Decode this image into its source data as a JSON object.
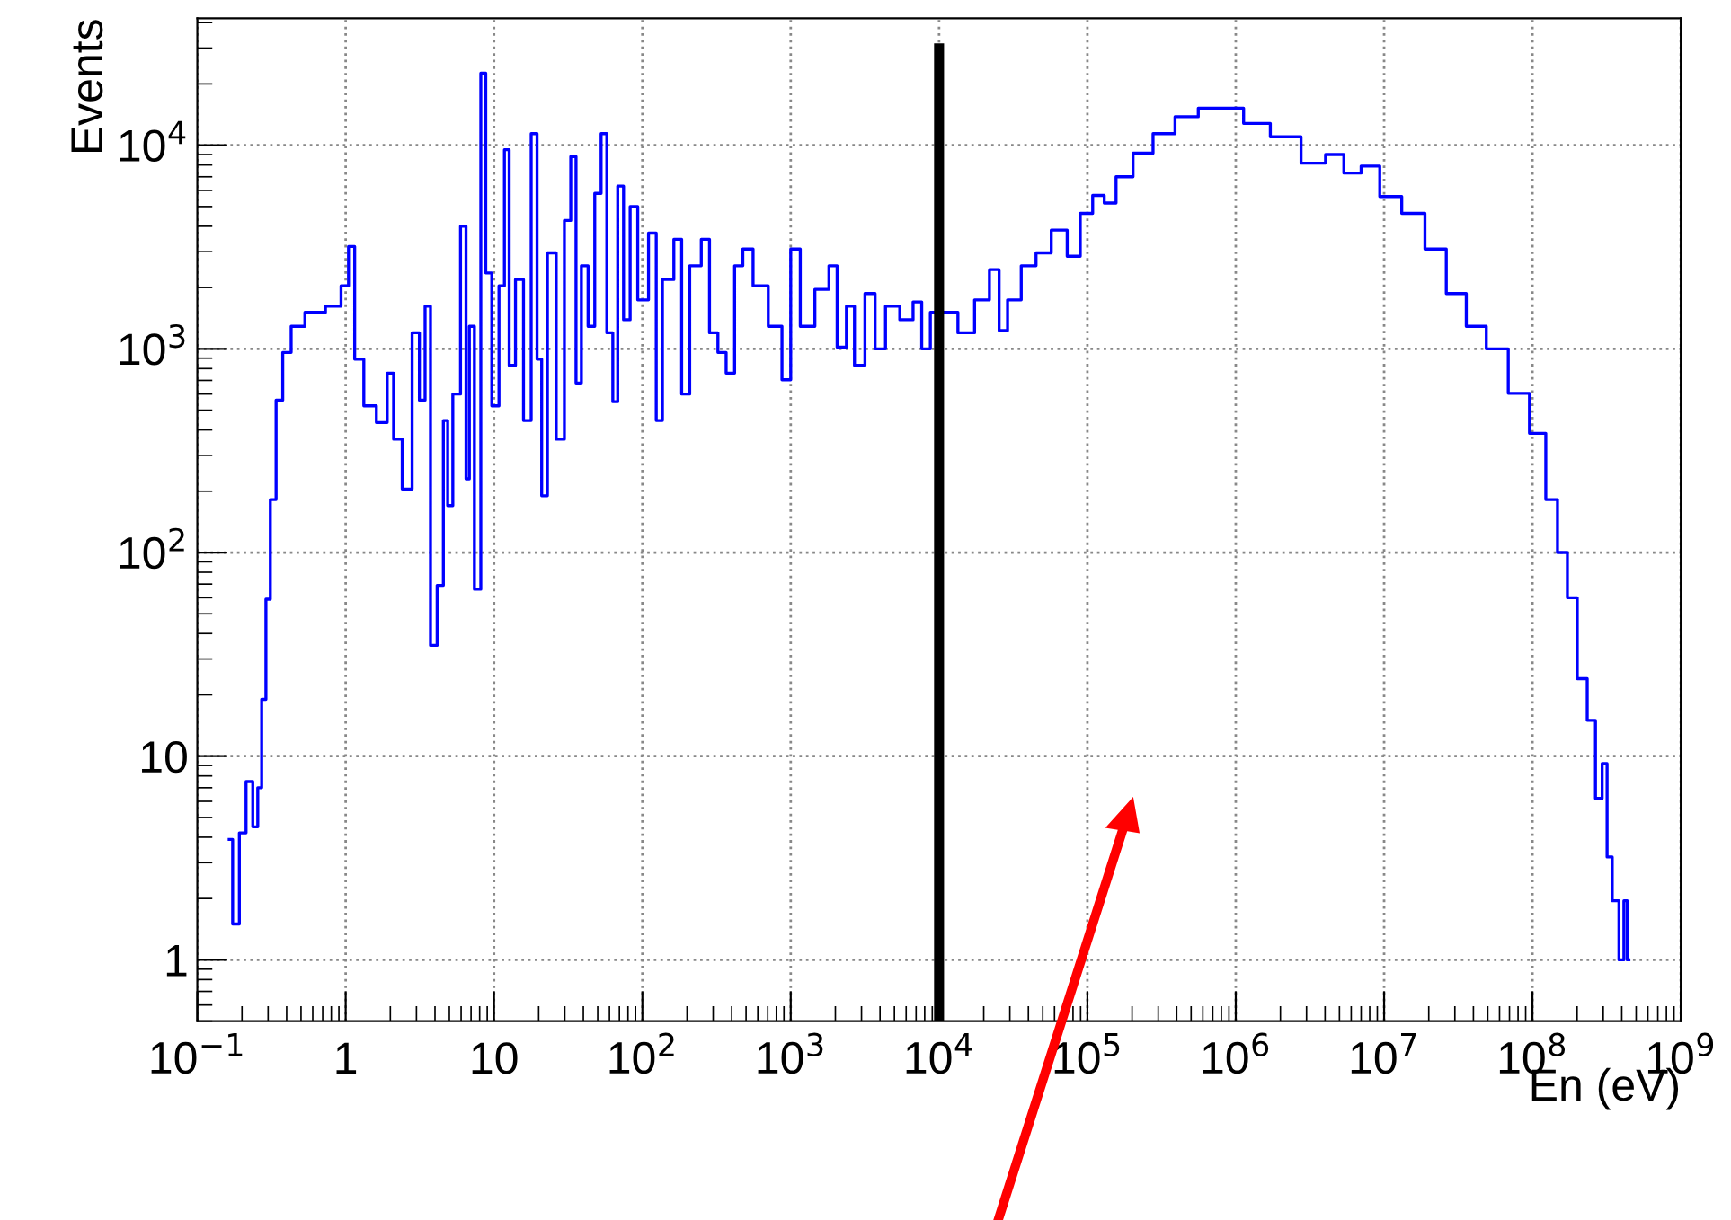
{
  "chart_data": {
    "type": "step",
    "xlabel": "En (eV)",
    "ylabel": "Events",
    "log": "xy",
    "grid": true,
    "xlim": [
      0.1,
      1000000000
    ],
    "ylim": [
      0.5,
      42000
    ],
    "xticks": [
      {
        "value": 0.1,
        "label": "10$^{−1}$"
      },
      1,
      10,
      {
        "value": 100,
        "label": "10$^{2}$"
      },
      {
        "value": 1000,
        "label": "10$^{3}$"
      },
      {
        "value": 10000,
        "label": "10$^{4}$"
      },
      {
        "value": 100000,
        "label": "10$^{5}$"
      },
      {
        "value": 1000000,
        "label": "10$^{6}$"
      },
      {
        "value": 10000000,
        "label": "10$^{7}$"
      },
      {
        "value": 100000000,
        "label": "10$^{8}$"
      },
      {
        "value": 1000000000,
        "label": "10$^{9}$"
      }
    ],
    "yticks": [
      1,
      10,
      {
        "value": 100,
        "label": "10$^{2}$"
      },
      {
        "value": 1000,
        "label": "10$^{3}$"
      },
      {
        "value": 10000,
        "label": "10$^{4}$"
      }
    ],
    "ref_lines": [
      {
        "axis": "x",
        "value": 10000,
        "color": "#000000"
      }
    ],
    "series": [
      {
        "color": "#0000ff",
        "x": [
          0.164,
          0.182,
          0.202,
          0.224,
          0.249,
          0.262,
          0.281,
          0.299,
          0.322,
          0.357,
          0.396,
          0.462,
          0.6,
          0.861,
          1.0,
          1.09,
          1.21,
          1.44,
          1.78,
          2.03,
          2.18,
          2.63,
          2.98,
          3.3,
          3.56,
          3.9,
          4.37,
          4.74,
          5.0,
          5.55,
          6.34,
          6.61,
          7.03,
          7.72,
          8.57,
          9.02,
          10.3,
          11.3,
          12.2,
          13.1,
          14.8,
          16.8,
          18.8,
          20.2,
          21.7,
          24.1,
          28.4,
          31.2,
          34.6,
          36.8,
          40.8,
          45.3,
          50.2,
          55.2,
          60.0,
          66.4,
          70.0,
          79.3,
          86.1,
          100,
          120,
          128,
          145,
          181,
          187,
          230,
          269,
          298,
          348,
          386,
          451,
          500,
          615,
          796,
          950,
          1050,
          1270,
          1640,
          1980,
          2130,
          2620,
          2760,
          3570,
          3840,
          4870,
          6000,
          7360,
          7920,
          9550,
          11700,
          15100,
          19600,
          24100,
          26700,
          31200,
          40400,
          49700,
          64400,
          81700,
          97300,
          119700,
          140000,
          172000,
          234000,
          320000,
          459000,
          659000,
          899000,
          1360000,
          2060000,
          3450000,
          4610000,
          6100000,
          7900000,
          10800000,
          15500000,
          22200000,
          30300000,
          41300000,
          56400000,
          81000000,
          110000000,
          136000000,
          159000000,
          185000000,
          216000000,
          252000000,
          280000000,
          310000000,
          327000000,
          363000000,
          403000000,
          424000000,
          447000000
        ],
        "values": [
          3.9,
          1.5,
          4.2,
          7.5,
          4.5,
          7,
          19,
          59,
          182,
          560,
          960,
          1290,
          1510,
          1620,
          2040,
          3180,
          890,
          525,
          435,
          760,
          360,
          205,
          1200,
          560,
          1620,
          35,
          69,
          445,
          170,
          600,
          4000,
          230,
          1290,
          66,
          22600,
          2360,
          525,
          2040,
          9500,
          830,
          2190,
          445,
          11400,
          890,
          190,
          2960,
          360,
          4270,
          8800,
          680,
          2560,
          1290,
          5800,
          11400,
          1200,
          550,
          6300,
          1390,
          5000,
          1740,
          3700,
          445,
          2190,
          3450,
          600,
          2560,
          3450,
          1200,
          960,
          760,
          2560,
          3090,
          2040,
          1290,
          705,
          3090,
          1290,
          1960,
          2560,
          1020,
          1620,
          830,
          1870,
          1000,
          1620,
          1390,
          1700,
          1000,
          1510,
          1510,
          1200,
          1740,
          2450,
          1230,
          1740,
          2560,
          2960,
          3830,
          2850,
          4630,
          5670,
          5200,
          7000,
          9140,
          11400,
          13800,
          15200,
          15200,
          12800,
          11000,
          8170,
          9000,
          7300,
          7900,
          5600,
          4630,
          3090,
          1870,
          1290,
          1000,
          605,
          385,
          182,
          100,
          60,
          24,
          15,
          6.2,
          9.2,
          3.2,
          1.95,
          1.0,
          1.95,
          1.0
        ]
      }
    ]
  }
}
